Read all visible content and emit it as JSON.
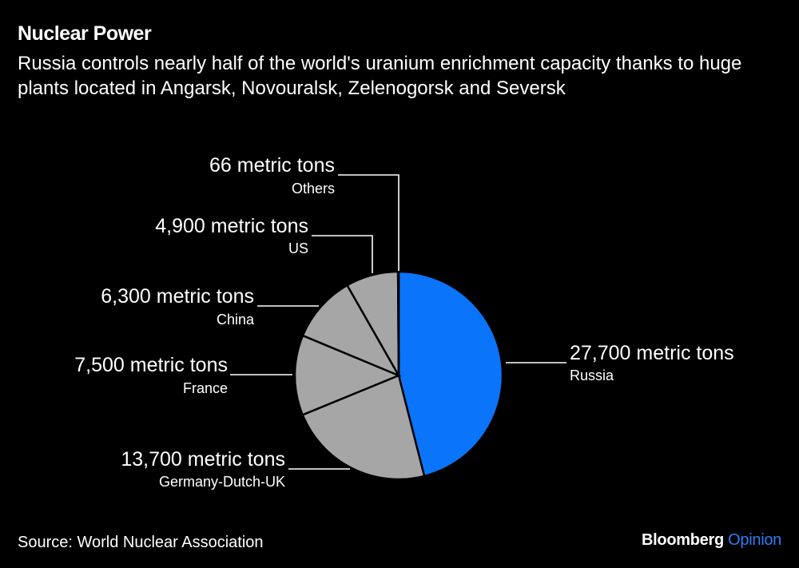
{
  "header": {
    "title": "Nuclear Power",
    "subtitle": "Russia controls nearly half of the world's uranium enrichment capacity thanks to huge plants located in Angarsk, Novouralsk, Zelenogorsk and Seversk"
  },
  "footer": {
    "source": "Source: World Nuclear Association",
    "brand": "Bloomberg",
    "brand_suffix": "Opinion"
  },
  "colors": {
    "highlight": "#0A74FB",
    "other": "#A6A6A6",
    "background": "#000000",
    "brand_accent": "#2F7DF6"
  },
  "chart_data": {
    "type": "pie",
    "title": "Nuclear Power",
    "subtitle": "Russia controls nearly half of the world's uranium enrichment capacity thanks to huge plants located in Angarsk, Novouralsk, Zelenogorsk and Seversk",
    "unit": "metric tons",
    "start_angle": "12 o'clock, clockwise",
    "categories": [
      "Russia",
      "Germany-Dutch-UK",
      "France",
      "China",
      "US",
      "Others"
    ],
    "values": [
      27700,
      13700,
      7500,
      6300,
      4900,
      66
    ],
    "labels": [
      "27,700 metric tons",
      "13,700 metric tons",
      "7,500 metric tons",
      "6,300 metric tons",
      "4,900 metric tons",
      "66 metric tons"
    ],
    "colors": [
      "#0A74FB",
      "#A6A6A6",
      "#A6A6A6",
      "#A6A6A6",
      "#A6A6A6",
      "#A6A6A6"
    ],
    "source": "Source: World Nuclear Association"
  }
}
